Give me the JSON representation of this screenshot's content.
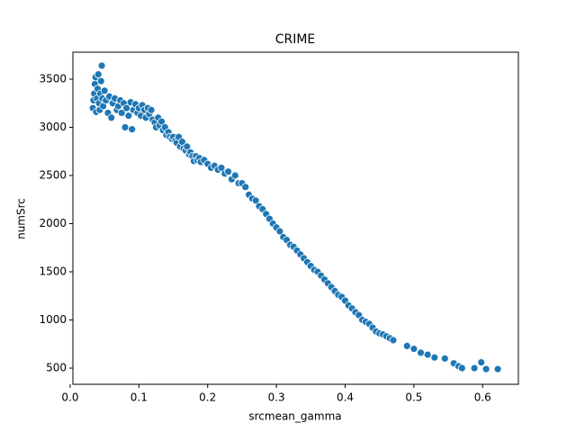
{
  "chart_data": {
    "type": "scatter",
    "title": "CRIME",
    "x_label": "srcmean_gamma",
    "y_label": "numSrc",
    "color": "#1f77b4",
    "grid": false,
    "xlim": [
      0.004,
      0.652
    ],
    "ylim": [
      332,
      3780
    ],
    "xticks": [
      {
        "value": 0,
        "label": "0.0"
      },
      0.1,
      0.2,
      0.3,
      0.4,
      0.5,
      0.6
    ],
    "yticks": [
      500,
      1000,
      1500,
      2000,
      2500,
      3000,
      3500
    ],
    "x": [
      0.033,
      0.034,
      0.035,
      0.036,
      0.037,
      0.038,
      0.039,
      0.04,
      0.041,
      0.042,
      0.043,
      0.044,
      0.045,
      0.046,
      0.047,
      0.048,
      0.05,
      0.052,
      0.055,
      0.057,
      0.06,
      0.062,
      0.065,
      0.068,
      0.07,
      0.073,
      0.075,
      0.078,
      0.08,
      0.082,
      0.085,
      0.088,
      0.09,
      0.092,
      0.095,
      0.098,
      0.1,
      0.103,
      0.105,
      0.108,
      0.11,
      0.113,
      0.115,
      0.118,
      0.12,
      0.123,
      0.125,
      0.128,
      0.13,
      0.133,
      0.135,
      0.138,
      0.14,
      0.143,
      0.145,
      0.148,
      0.15,
      0.153,
      0.155,
      0.158,
      0.16,
      0.163,
      0.165,
      0.168,
      0.17,
      0.173,
      0.175,
      0.178,
      0.18,
      0.183,
      0.185,
      0.188,
      0.19,
      0.195,
      0.2,
      0.205,
      0.21,
      0.215,
      0.22,
      0.225,
      0.23,
      0.235,
      0.24,
      0.245,
      0.25,
      0.255,
      0.26,
      0.265,
      0.27,
      0.275,
      0.28,
      0.285,
      0.29,
      0.295,
      0.3,
      0.305,
      0.31,
      0.315,
      0.32,
      0.325,
      0.33,
      0.335,
      0.34,
      0.345,
      0.35,
      0.355,
      0.36,
      0.365,
      0.37,
      0.375,
      0.38,
      0.385,
      0.39,
      0.395,
      0.4,
      0.405,
      0.41,
      0.415,
      0.42,
      0.425,
      0.43,
      0.435,
      0.44,
      0.445,
      0.45,
      0.455,
      0.46,
      0.465,
      0.47,
      0.49,
      0.5,
      0.51,
      0.52,
      0.53,
      0.545,
      0.558,
      0.565,
      0.57,
      0.588,
      0.598,
      0.605,
      0.622
    ],
    "values": [
      3200,
      3280,
      3350,
      3450,
      3520,
      3160,
      3300,
      3400,
      3550,
      3250,
      3180,
      3350,
      3480,
      3640,
      3300,
      3220,
      3380,
      3280,
      3150,
      3320,
      3100,
      3250,
      3300,
      3180,
      3220,
      3280,
      3150,
      3250,
      3000,
      3200,
      3120,
      3260,
      2980,
      3180,
      3240,
      3150,
      3200,
      3120,
      3230,
      3180,
      3100,
      3200,
      3140,
      3180,
      3080,
      3050,
      3000,
      3100,
      3020,
      3060,
      2970,
      3000,
      2920,
      2950,
      2900,
      2880,
      2900,
      2860,
      2840,
      2900,
      2800,
      2850,
      2780,
      2760,
      2800,
      2720,
      2740,
      2700,
      2650,
      2700,
      2660,
      2680,
      2640,
      2660,
      2620,
      2580,
      2600,
      2560,
      2580,
      2520,
      2540,
      2460,
      2500,
      2420,
      2420,
      2380,
      2300,
      2260,
      2240,
      2180,
      2150,
      2100,
      2050,
      2000,
      1960,
      1920,
      1860,
      1830,
      1780,
      1760,
      1720,
      1680,
      1640,
      1600,
      1560,
      1520,
      1500,
      1460,
      1420,
      1380,
      1340,
      1300,
      1260,
      1240,
      1200,
      1150,
      1120,
      1080,
      1050,
      1000,
      980,
      960,
      920,
      880,
      860,
      850,
      830,
      810,
      790,
      730,
      700,
      660,
      640,
      610,
      600,
      550,
      520,
      500,
      500,
      560,
      490,
      490
    ]
  }
}
